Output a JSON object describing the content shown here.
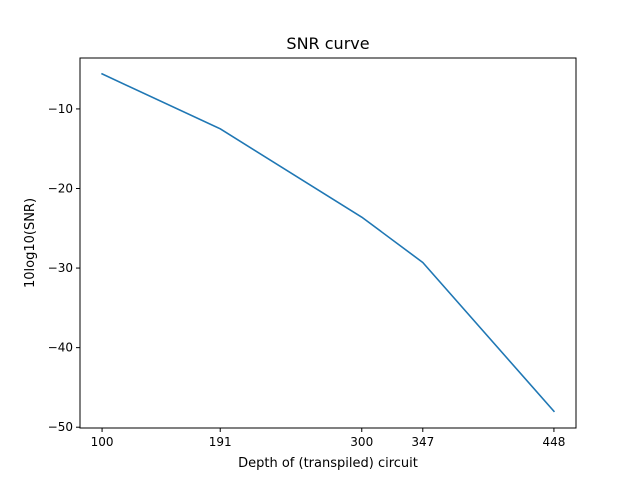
{
  "chart_data": {
    "type": "line",
    "title": "SNR curve",
    "xlabel": "Depth of (transpiled) circuit",
    "ylabel": "10log10(SNR)",
    "xlim": [
      83,
      465
    ],
    "ylim": [
      -50.1,
      -3.6
    ],
    "grid": false,
    "xticks": [
      100,
      191,
      300,
      347,
      448
    ],
    "xtick_labels": [
      "100",
      "191",
      "300",
      "347",
      "448"
    ],
    "yticks": [
      -10,
      -20,
      -30,
      -40,
      -50
    ],
    "ytick_labels": [
      "−10",
      "−20",
      "−30",
      "−40",
      "−50"
    ],
    "series": [
      {
        "color": "#1f77b4",
        "x": [
          100,
          191,
          300,
          347,
          448
        ],
        "y": [
          -5.6,
          -12.5,
          -23.6,
          -29.3,
          -48.0
        ]
      }
    ]
  }
}
